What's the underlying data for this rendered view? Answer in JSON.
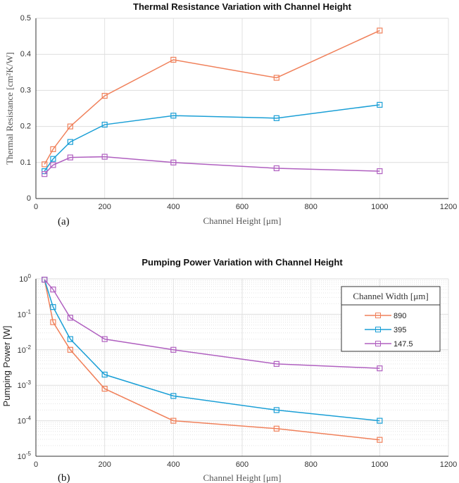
{
  "chart_data": [
    {
      "type": "line",
      "title": "Thermal Resistance Variation with Channel Height",
      "xlabel": "Channel Height [μm]",
      "ylabel": "Thermal Resistance [cm²K/W]",
      "panel_label": "(a)",
      "xlim": [
        0,
        1200
      ],
      "ylim": [
        0,
        0.5
      ],
      "xticks": [
        "0",
        "200",
        "400",
        "600",
        "800",
        "1000",
        "1200"
      ],
      "yticks": [
        "0",
        "0.1",
        "0.2",
        "0.3",
        "0.4",
        "0.5"
      ],
      "grid": true,
      "x": [
        25,
        50,
        100,
        200,
        400,
        700,
        1000
      ],
      "series": [
        {
          "values": [
            0.095,
            0.137,
            0.2,
            0.285,
            0.385,
            0.335,
            0.466
          ],
          "color": "#f0805a"
        },
        {
          "values": [
            0.076,
            0.11,
            0.157,
            0.205,
            0.23,
            0.223,
            0.26
          ],
          "color": "#1a9fd6"
        },
        {
          "values": [
            0.068,
            0.093,
            0.114,
            0.116,
            0.1,
            0.084,
            0.076
          ],
          "color": "#b060c0"
        }
      ]
    },
    {
      "type": "line",
      "title": "Pumping Power Variation with Channel Height",
      "xlabel": "Channel Height [μm]",
      "ylabel": "Pumping Power [W]",
      "panel_label": "(b)",
      "xlim": [
        0,
        1200
      ],
      "ylim": [
        1e-05,
        1
      ],
      "yscale": "log",
      "xticks": [
        "0",
        "200",
        "400",
        "600",
        "800",
        "1000",
        "1200"
      ],
      "yticks": [
        "10^0",
        "10^-1",
        "10^-2",
        "10^-3",
        "10^-4",
        "10^-5"
      ],
      "grid": true,
      "legend": {
        "title": "Channel Width [μm]",
        "position": "top-right"
      },
      "x": [
        25,
        50,
        100,
        200,
        400,
        700,
        1000
      ],
      "series": [
        {
          "name": "890",
          "values": [
            0.95,
            0.06,
            0.01,
            0.0008,
            0.0001,
            6e-05,
            2.9e-05
          ],
          "color": "#f0805a"
        },
        {
          "name": "395",
          "values": [
            0.95,
            0.16,
            0.02,
            0.002,
            0.0005,
            0.0002,
            0.0001
          ],
          "color": "#1a9fd6"
        },
        {
          "name": "147.5",
          "values": [
            0.95,
            0.5,
            0.08,
            0.02,
            0.01,
            0.004,
            0.003
          ],
          "color": "#b060c0"
        }
      ]
    }
  ]
}
